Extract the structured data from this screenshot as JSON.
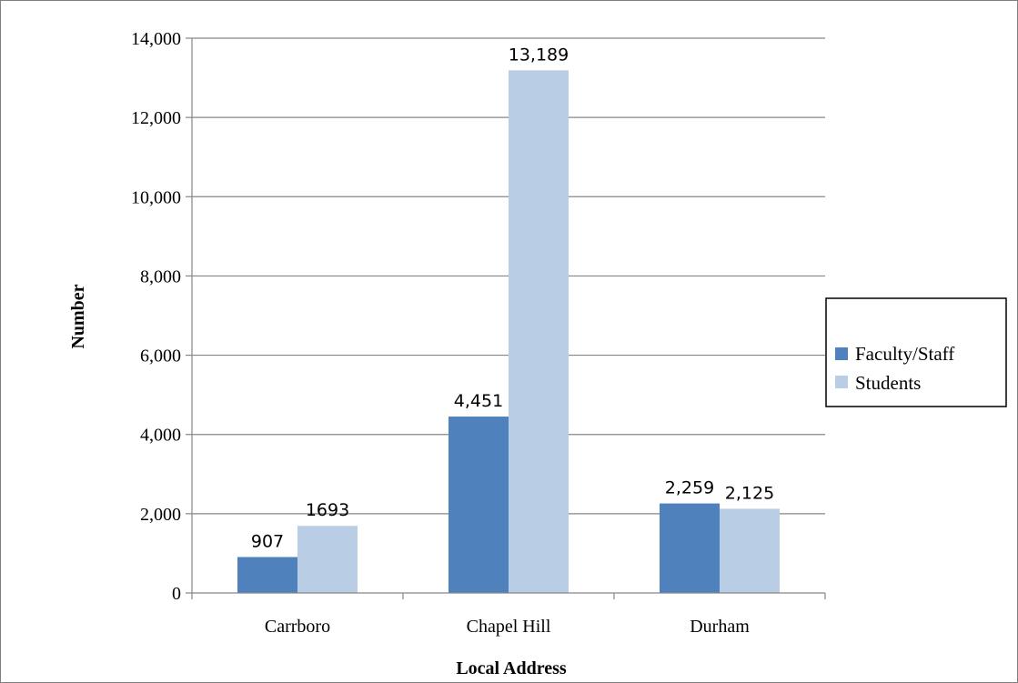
{
  "chart_data": {
    "type": "bar",
    "title": "",
    "xlabel": "Local Address",
    "ylabel": "Number",
    "categories": [
      "Carrboro",
      "Chapel Hill",
      "Durham"
    ],
    "series": [
      {
        "name": "Faculty/Staff",
        "values": [
          907,
          4451,
          2259
        ],
        "labels": [
          "907",
          "4,451",
          "2,259"
        ],
        "color": "#4f81bd"
      },
      {
        "name": "Students",
        "values": [
          1693,
          13189,
          2125
        ],
        "labels": [
          "1693",
          "13,189",
          "2,125"
        ],
        "color": "#b9cde5"
      }
    ],
    "ylim": [
      0,
      14000
    ],
    "yticks": [
      0,
      2000,
      4000,
      6000,
      8000,
      10000,
      12000,
      14000
    ],
    "ytick_labels": [
      "0",
      "2,000",
      "4,000",
      "6,000",
      "8,000",
      "10,000",
      "12,000",
      "14,000"
    ],
    "grid": true,
    "legend_position": "right"
  }
}
